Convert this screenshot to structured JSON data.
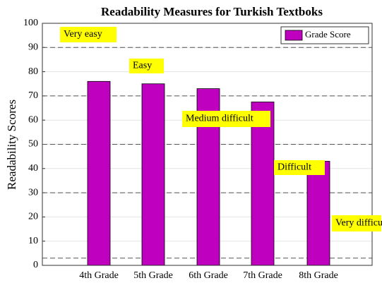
{
  "chart_data": {
    "type": "bar",
    "title": "Readability Measures for Turkish Textboks",
    "y_label": "Readability Scores",
    "categories": [
      "4th Grade",
      "5th Grade",
      "6th Grade",
      "7th Grade",
      "8th Grade"
    ],
    "series": [
      {
        "name": "Grade Score",
        "color": "#bf00bf",
        "values": [
          76,
          75,
          73,
          67.5,
          43
        ]
      }
    ],
    "ylim": [
      0,
      100
    ],
    "yticks": [
      0,
      10,
      20,
      30,
      40,
      50,
      60,
      70,
      80,
      90,
      100
    ],
    "grid": true,
    "legend": "upper right",
    "reference_lines": [
      90,
      70,
      50,
      30,
      3
    ],
    "annotations": [
      "Very easy",
      "Easy",
      "Medium difficult",
      "Difficult",
      "Very difficult"
    ]
  }
}
